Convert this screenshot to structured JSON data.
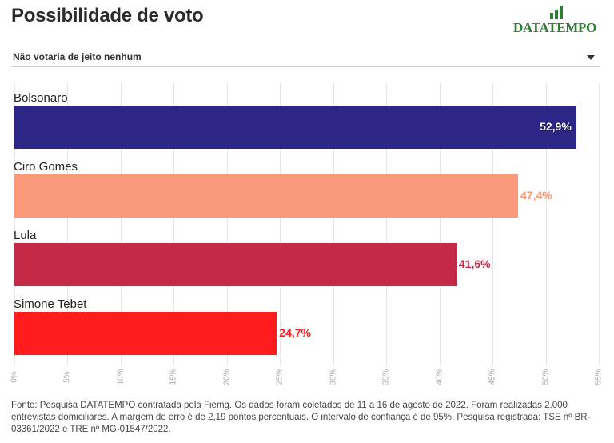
{
  "title": "Possibilidade de voto",
  "logo": {
    "text_part1": "DATA",
    "text_part2": "TEMPO",
    "icon": "bar-chart-logo-icon",
    "color": "#2e7d32"
  },
  "dropdown": {
    "selected": "Não votaria de jeito nenhum",
    "icon": "chevron-down-icon"
  },
  "chart_data": {
    "type": "bar",
    "orientation": "horizontal",
    "categories": [
      "Bolsonaro",
      "Ciro Gomes",
      "Lula",
      "Simone Tebet"
    ],
    "values": [
      52.9,
      47.4,
      41.6,
      24.7
    ],
    "value_labels": [
      "52,9%",
      "47,4%",
      "41,6%",
      "24,7%"
    ],
    "colors": [
      "#2c2687",
      "#fb9a7b",
      "#c42a46",
      "#ff1c1c"
    ],
    "xlim": [
      0,
      55
    ],
    "x_ticks": [
      "0%",
      "5%",
      "10%",
      "15%",
      "20%",
      "25%",
      "30%",
      "35%",
      "40%",
      "45%",
      "50%",
      "55%"
    ],
    "grid": true
  },
  "footer": {
    "source": "Fonte: Pesquisa DATATEMPO contratada pela Fiemg. Os dados foram coletados de 11 a 16 de agosto de 2022. Foram realizadas 2.000 entrevistas domiciliares. A margem de erro é de 2,19 pontos percentuais. O intervalo de confiança é de 95%. Pesquisa registrada: TSE nº BR-03361/2022 e TRE nº MG-01547/2022."
  }
}
